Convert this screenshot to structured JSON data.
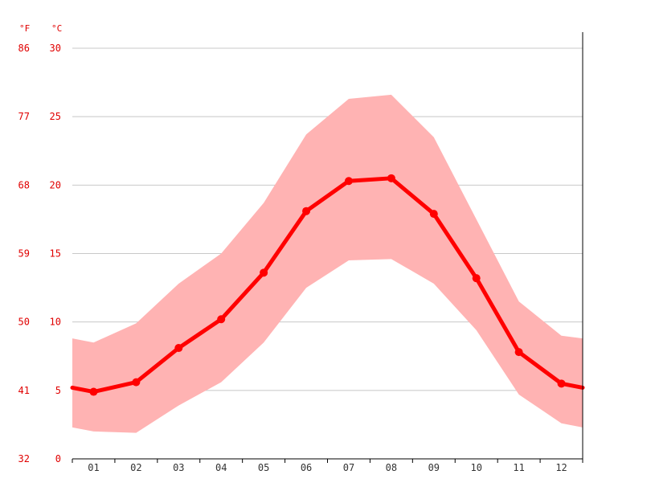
{
  "chart_data": {
    "type": "line",
    "categories": [
      "01",
      "02",
      "03",
      "04",
      "05",
      "06",
      "07",
      "08",
      "09",
      "10",
      "11",
      "12"
    ],
    "series": [
      {
        "values": [
          4.9,
          5.6,
          8.1,
          10.2,
          13.6,
          18.1,
          20.3,
          20.5,
          17.9,
          13.2,
          7.8,
          5.5
        ]
      }
    ],
    "range": {
      "min": [
        2.0,
        1.9,
        3.9,
        5.6,
        8.5,
        12.5,
        14.5,
        14.6,
        12.8,
        9.4,
        4.7,
        2.6
      ],
      "max": [
        8.5,
        9.9,
        12.8,
        15.0,
        18.7,
        23.7,
        26.3,
        26.6,
        23.5,
        17.5,
        11.5,
        9.0
      ]
    },
    "edge_values": {
      "left": 5.2,
      "right": 5.2
    },
    "edge_range": {
      "left": [
        2.3,
        8.8
      ],
      "right": [
        2.3,
        8.8
      ]
    },
    "unit_labels": {
      "fahrenheit": "°F",
      "celsius": "°C"
    },
    "y_ticks_c": [
      "0",
      "5",
      "10",
      "15",
      "20",
      "25",
      "30"
    ],
    "y_ticks_f": [
      "32",
      "41",
      "50",
      "59",
      "68",
      "77",
      "86"
    ],
    "ylim": [
      0,
      30
    ],
    "grid": true,
    "colors": {
      "line": "#ff0000",
      "band": "#ffb3b3",
      "tick_text": "#e00000",
      "grid": "#c8c8c8"
    }
  }
}
